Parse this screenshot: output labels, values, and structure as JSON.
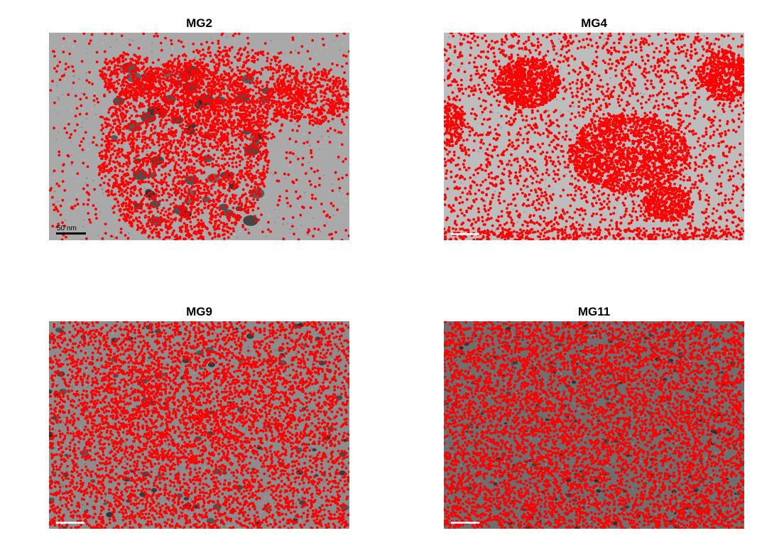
{
  "panels": [
    {
      "title": "MG2",
      "scale_label": "50 nm",
      "background": "#a9a9a9",
      "density": "clustered-left",
      "dark_features": "large"
    },
    {
      "title": "MG4",
      "scale_label": "",
      "background": "#bdbdbd",
      "density": "clustered-blobs",
      "dark_features": "none"
    },
    {
      "title": "MG9",
      "scale_label": "",
      "background": "#8c8c8c",
      "density": "uniform-dense",
      "dark_features": "small"
    },
    {
      "title": "MG11",
      "scale_label": "",
      "background": "#6f6f6f",
      "density": "uniform-verydense",
      "dark_features": "texture"
    }
  ],
  "colors": {
    "dot": "#ff0000",
    "dark": "#1e1e1e",
    "scale_bar": "#000000"
  }
}
